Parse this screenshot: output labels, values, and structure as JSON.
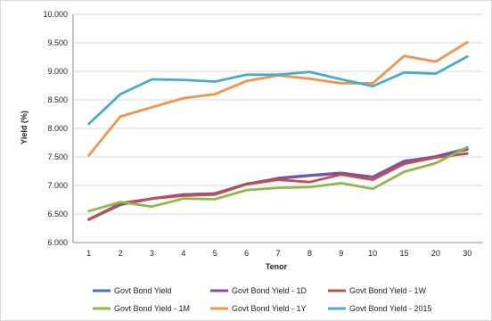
{
  "chart_data": {
    "type": "line",
    "title": "",
    "xlabel": "Tenor",
    "ylabel": "Yield (%)",
    "categories": [
      "1",
      "2",
      "3",
      "4",
      "5",
      "6",
      "7",
      "8",
      "9",
      "10",
      "15",
      "20",
      "30"
    ],
    "ylim": [
      6.0,
      10.0
    ],
    "yticks": [
      "6.000",
      "6.500",
      "7.000",
      "7.500",
      "8.000",
      "8.500",
      "9.000",
      "9.500",
      "10.000"
    ],
    "grid": true,
    "legend_position": "bottom",
    "series": [
      {
        "name": "Govt Bond Yield",
        "color": "#4472C4",
        "values": [
          6.4,
          6.66,
          6.77,
          6.84,
          6.86,
          7.03,
          7.12,
          7.17,
          7.21,
          7.15,
          7.42,
          7.51,
          7.65
        ]
      },
      {
        "name": "Govt Bond Yield - 1D",
        "color": "#7F4FA5",
        "values": [
          6.41,
          6.67,
          6.77,
          6.84,
          6.86,
          7.02,
          7.13,
          7.18,
          7.22,
          7.15,
          7.43,
          7.5,
          7.63
        ]
      },
      {
        "name": "Govt Bond Yield - 1W",
        "color": "#C0504D",
        "values": [
          6.4,
          6.69,
          6.77,
          6.82,
          6.84,
          7.02,
          7.1,
          7.06,
          7.19,
          7.1,
          7.38,
          7.49,
          7.56
        ]
      },
      {
        "name": "Govt Bond Yield - 1M",
        "color": "#8DB94A",
        "values": [
          6.55,
          6.71,
          6.63,
          6.77,
          6.76,
          6.92,
          6.96,
          6.97,
          7.04,
          6.94,
          7.24,
          7.39,
          7.67
        ]
      },
      {
        "name": "Govt Bond Yield - 1Y",
        "color": "#F0954A",
        "values": [
          7.53,
          8.21,
          8.37,
          8.53,
          8.6,
          8.83,
          8.93,
          8.87,
          8.79,
          8.79,
          9.27,
          9.17,
          9.51
        ]
      },
      {
        "name": "Govt Bond Yield - 2015",
        "color": "#4BACC6",
        "values": [
          8.08,
          8.6,
          8.86,
          8.85,
          8.82,
          8.94,
          8.94,
          8.99,
          8.86,
          8.74,
          8.98,
          8.96,
          9.26
        ]
      }
    ]
  }
}
